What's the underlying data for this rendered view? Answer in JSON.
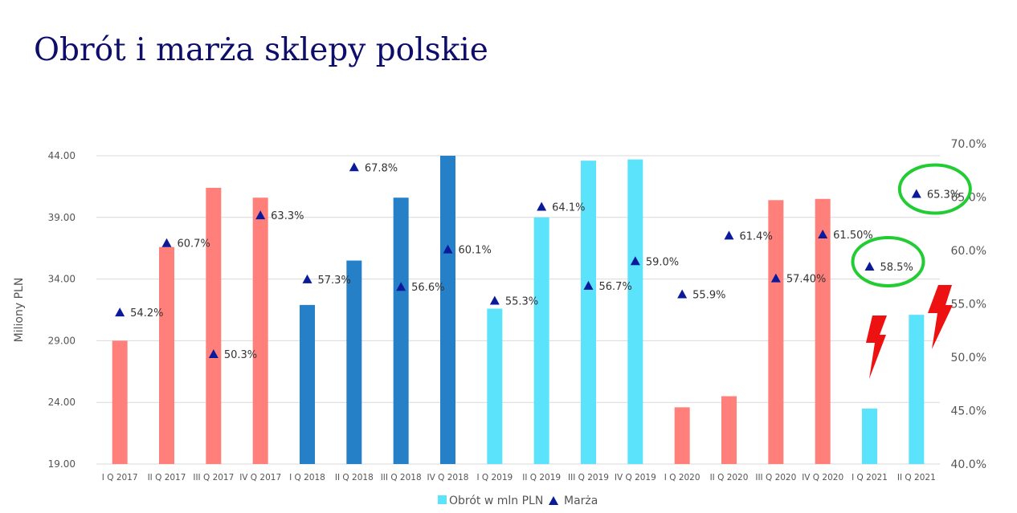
{
  "slide": {
    "title": "Obrót i marża sklepy polskie"
  },
  "chart_data": {
    "type": "bar",
    "categories": [
      "I Q 2017",
      "II Q 2017",
      "III Q 2017",
      "IV Q 2017",
      "I Q 2018",
      "II Q 2018",
      "III Q 2018",
      "IV Q 2018",
      "I Q 2019",
      "II Q 2019",
      "III Q 2019",
      "IV Q 2019",
      "I Q 2020",
      "II Q 2020",
      "III Q 2020",
      "IV Q 2020",
      "I Q 2021",
      "II Q 2021"
    ],
    "series": [
      {
        "name": "Obrót w mln PLN",
        "type": "bar",
        "axis": "left",
        "values": [
          29.0,
          36.6,
          41.4,
          40.6,
          31.9,
          35.5,
          40.6,
          44.0,
          31.6,
          39.0,
          43.6,
          43.7,
          23.6,
          24.5,
          40.4,
          40.5,
          23.5,
          31.1
        ],
        "colors": [
          "#ff7f7a",
          "#ff7f7a",
          "#ff7f7a",
          "#ff7f7a",
          "#2580c8",
          "#2580c8",
          "#2580c8",
          "#2580c8",
          "#5ae3fb",
          "#5ae3fb",
          "#5ae3fb",
          "#5ae3fb",
          "#ff7f7a",
          "#ff7f7a",
          "#ff7f7a",
          "#ff7f7a",
          "#5ae3fb",
          "#5ae3fb"
        ]
      },
      {
        "name": "Marża",
        "type": "scatter",
        "axis": "right",
        "marker": "triangle",
        "color": "#0a1a9a",
        "values": [
          54.2,
          60.7,
          50.3,
          63.3,
          57.3,
          67.8,
          56.6,
          60.1,
          55.3,
          64.1,
          56.7,
          59.0,
          55.9,
          61.4,
          57.4,
          61.5,
          58.5,
          65.3
        ],
        "labels": [
          "54.2%",
          "60.7%",
          "50.3%",
          "63.3%",
          "57.3%",
          "67.8%",
          "56.6%",
          "60.1%",
          "55.3%",
          "64.1%",
          "56.7%",
          "59.0%",
          "55.9%",
          "61.4%",
          "57.40%",
          "61.50%",
          "58.5%",
          "65.3%"
        ]
      }
    ],
    "ylabel": "Miliony PLN",
    "ylim": [
      19,
      44
    ],
    "yticks": [
      "19.00",
      "24.00",
      "29.00",
      "34.00",
      "39.00",
      "44.00"
    ],
    "y2lim": [
      40,
      70
    ],
    "y2ticks": [
      "40.0%",
      "45.0%",
      "50.0%",
      "55.0%",
      "60.0%",
      "65.0%",
      "70.0%"
    ],
    "grid": true,
    "legend": "bottom",
    "annotations": {
      "circled_labels": [
        "58.5%",
        "65.3%"
      ],
      "circle_color": "#22cc33",
      "bolt_color": "#ee1111"
    }
  }
}
